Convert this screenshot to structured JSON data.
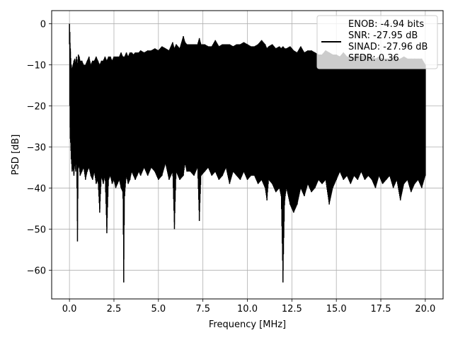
{
  "chart_data": {
    "type": "line",
    "title": "",
    "xlabel": "Frequency [MHz]",
    "ylabel": "PSD [dB]",
    "xlim": [
      -1.0,
      21.0
    ],
    "ylim": [
      -67.0,
      3.2
    ],
    "x_ticks": [
      0.0,
      2.5,
      5.0,
      7.5,
      10.0,
      12.5,
      15.0,
      17.5,
      20.0
    ],
    "x_tick_labels": [
      "0.0",
      "2.5",
      "5.0",
      "7.5",
      "10.0",
      "12.5",
      "15.0",
      "17.5",
      "20.0"
    ],
    "y_ticks": [
      0,
      -10,
      -20,
      -30,
      -40,
      -50,
      -60
    ],
    "y_tick_labels": [
      "0",
      "−10",
      "−20",
      "−30",
      "−40",
      "−50",
      "−60"
    ],
    "grid": true,
    "legend_position": "upper right",
    "legend_entries": [
      "ENOB: -4.94 bits",
      "SNR: -27.95 dB",
      "SINAD: -27.96 dB",
      "SFDR: 0.36"
    ],
    "line_color": "#000000",
    "series": [
      {
        "x": [
          0.0,
          0.02,
          0.05,
          0.1,
          0.15,
          0.2,
          0.25,
          0.3,
          0.35,
          0.4,
          0.45,
          0.5,
          0.55,
          0.6,
          0.7,
          0.8,
          0.9,
          1.0,
          1.1,
          1.2,
          1.3,
          1.4,
          1.5,
          1.6,
          1.7,
          1.8,
          1.9,
          2.0,
          2.1,
          2.2,
          2.3,
          2.4,
          2.5,
          2.6,
          2.7,
          2.8,
          2.9,
          3.0,
          3.05,
          3.1,
          3.2,
          3.3,
          3.4,
          3.5,
          3.6,
          3.7,
          3.8,
          3.9,
          4.0,
          4.2,
          4.4,
          4.6,
          4.8,
          5.0,
          5.2,
          5.4,
          5.6,
          5.8,
          5.9,
          6.0,
          6.2,
          6.4,
          6.5,
          6.6,
          6.8,
          7.0,
          7.2,
          7.3,
          7.4,
          7.6,
          7.8,
          8.0,
          8.2,
          8.4,
          8.6,
          8.8,
          9.0,
          9.2,
          9.4,
          9.6,
          9.8,
          10.0,
          10.2,
          10.4,
          10.6,
          10.8,
          11.0,
          11.1,
          11.2,
          11.4,
          11.6,
          11.8,
          11.9,
          12.0,
          12.1,
          12.2,
          12.4,
          12.5,
          12.6,
          12.8,
          13.0,
          13.2,
          13.4,
          13.6,
          13.8,
          14.0,
          14.2,
          14.4,
          14.6,
          14.8,
          15.0,
          15.2,
          15.4,
          15.6,
          15.8,
          16.0,
          16.2,
          16.4,
          16.6,
          16.8,
          17.0,
          17.2,
          17.4,
          17.6,
          17.8,
          18.0,
          18.2,
          18.4,
          18.6,
          18.8,
          19.0,
          19.2,
          19.4,
          19.6,
          19.8,
          20.0
        ],
        "y_max": [
          0.0,
          -2.0,
          -6.0,
          -10.0,
          -11.0,
          -10.0,
          -9.0,
          -8.5,
          -9.5,
          -8.0,
          -10.0,
          -7.5,
          -8.0,
          -9.0,
          -9.0,
          -10.0,
          -10.0,
          -9.0,
          -8.0,
          -10.0,
          -9.0,
          -9.0,
          -8.0,
          -9.0,
          -10.0,
          -9.0,
          -9.0,
          -8.0,
          -9.0,
          -8.0,
          -8.0,
          -9.0,
          -8.0,
          -8.0,
          -8.0,
          -8.0,
          -7.0,
          -8.0,
          -8.0,
          -8.0,
          -7.0,
          -8.0,
          -7.0,
          -7.0,
          -7.5,
          -7.0,
          -7.0,
          -7.0,
          -6.5,
          -7.0,
          -6.5,
          -6.5,
          -6.0,
          -6.5,
          -5.5,
          -6.0,
          -6.5,
          -4.5,
          -6.0,
          -5.0,
          -6.0,
          -3.0,
          -4.5,
          -5.0,
          -5.0,
          -5.0,
          -5.0,
          -3.5,
          -5.0,
          -5.0,
          -5.5,
          -5.5,
          -4.0,
          -5.5,
          -5.0,
          -5.0,
          -5.0,
          -5.5,
          -5.0,
          -5.0,
          -4.5,
          -5.0,
          -5.5,
          -5.5,
          -5.0,
          -4.0,
          -5.0,
          -6.0,
          -5.5,
          -5.0,
          -6.0,
          -5.5,
          -6.0,
          -5.5,
          -6.0,
          -6.0,
          -5.5,
          -6.0,
          -6.5,
          -7.0,
          -5.5,
          -7.0,
          -6.5,
          -6.5,
          -7.0,
          -7.5,
          -7.5,
          -6.5,
          -7.0,
          -7.5,
          -7.5,
          -8.0,
          -7.0,
          -8.0,
          -8.0,
          -8.0,
          -7.5,
          -8.0,
          -7.5,
          -8.0,
          -8.0,
          -8.5,
          -8.0,
          -8.5,
          -8.5,
          -8.5,
          -8.0,
          -8.5,
          -8.5,
          -8.0,
          -8.5,
          -8.5,
          -8.5,
          -8.5,
          -8.5,
          -10.0
        ],
        "y_min": [
          -5.0,
          -20.0,
          -28.0,
          -33.0,
          -36.0,
          -35.0,
          -37.0,
          -34.0,
          -36.0,
          -33.0,
          -53.0,
          -34.0,
          -35.0,
          -37.0,
          -36.0,
          -35.0,
          -38.0,
          -36.0,
          -35.0,
          -37.0,
          -38.0,
          -36.0,
          -39.0,
          -38.0,
          -46.0,
          -37.0,
          -39.0,
          -37.0,
          -51.0,
          -38.0,
          -37.0,
          -39.0,
          -38.0,
          -40.0,
          -39.0,
          -38.0,
          -40.0,
          -41.0,
          -63.0,
          -42.0,
          -37.0,
          -39.0,
          -38.0,
          -36.0,
          -37.0,
          -38.0,
          -37.0,
          -36.0,
          -37.0,
          -35.0,
          -37.0,
          -35.0,
          -36.0,
          -38.0,
          -37.0,
          -34.0,
          -38.0,
          -36.0,
          -50.0,
          -36.0,
          -38.0,
          -37.0,
          -34.0,
          -36.0,
          -36.0,
          -37.0,
          -35.0,
          -48.0,
          -37.0,
          -36.0,
          -35.0,
          -37.0,
          -36.0,
          -38.0,
          -37.0,
          -35.0,
          -39.0,
          -36.0,
          -37.0,
          -38.0,
          -36.0,
          -38.0,
          -37.0,
          -37.0,
          -39.0,
          -38.0,
          -40.0,
          -43.0,
          -38.0,
          -39.0,
          -41.0,
          -40.0,
          -42.0,
          -63.0,
          -43.0,
          -40.0,
          -44.0,
          -45.0,
          -46.0,
          -44.0,
          -40.0,
          -42.0,
          -39.0,
          -41.0,
          -40.0,
          -38.0,
          -39.0,
          -38.0,
          -44.0,
          -40.0,
          -38.0,
          -36.0,
          -38.0,
          -37.0,
          -39.0,
          -37.0,
          -38.0,
          -36.0,
          -38.0,
          -37.0,
          -38.0,
          -40.0,
          -37.0,
          -39.0,
          -38.0,
          -37.0,
          -40.0,
          -38.0,
          -43.0,
          -39.0,
          -38.0,
          -41.0,
          -39.0,
          -38.0,
          -40.0,
          -37.0
        ]
      }
    ]
  }
}
